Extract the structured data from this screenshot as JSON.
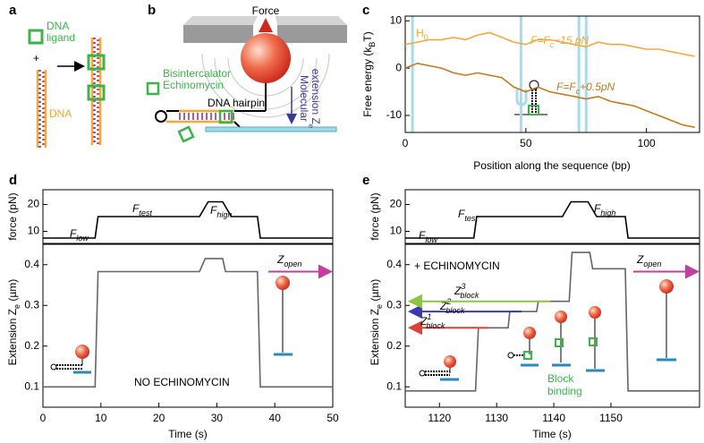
{
  "panel_labels": [
    "a",
    "b",
    "c",
    "d",
    "e"
  ],
  "panel_a": {
    "ligand_label": [
      "DNA",
      "ligand"
    ],
    "plus": "+",
    "dna_label": "DNA"
  },
  "panel_b": {
    "force_label": "Force",
    "drug_label": [
      "Bisintercalator",
      "Echinomycin"
    ],
    "hairpin_label": "DNA hairpin",
    "extension_label": [
      "Molecular",
      "extension Z",
      "e"
    ]
  },
  "chart_data": [
    {
      "type": "line",
      "xlabel": "Position along the sequence (bp)",
      "ylabel": [
        "Free energy (k",
        "B",
        "T)"
      ],
      "xlim": [
        0,
        122
      ],
      "ylim": [
        -13.6,
        11
      ],
      "xticks": [
        0,
        50,
        100
      ],
      "yticks": [
        -10,
        0,
        10
      ],
      "highlight_x": [
        3,
        48,
        72,
        75
      ],
      "highlight_color": "#a8dcea",
      "annotation": [
        "H",
        "0"
      ],
      "series": [
        {
          "name": [
            "F=F",
            "c",
            "−15 pN"
          ],
          "color": "#f6a83a",
          "x": [
            0,
            5,
            10,
            15,
            20,
            25,
            30,
            35,
            40,
            45,
            50,
            55,
            60,
            65,
            70,
            75,
            80,
            85,
            90,
            95,
            100,
            105,
            110,
            115,
            120
          ],
          "values": [
            5,
            5.5,
            6,
            6,
            6.5,
            6,
            7,
            7.5,
            6.5,
            5.5,
            5,
            6,
            6,
            5.5,
            5,
            4.5,
            5.5,
            5,
            5,
            4.5,
            4,
            4,
            3.5,
            3,
            2.5
          ]
        },
        {
          "name": [
            "F=F",
            "c",
            "+0.5pN"
          ],
          "color": "#c47a1e",
          "x": [
            0,
            5,
            10,
            15,
            20,
            25,
            30,
            35,
            40,
            45,
            50,
            55,
            60,
            65,
            70,
            75,
            80,
            85,
            90,
            95,
            100,
            105,
            110,
            115,
            120
          ],
          "values": [
            0,
            1,
            0.5,
            0,
            -1,
            -1.5,
            -1,
            -1.5,
            -2,
            -4,
            -5,
            -4,
            -5,
            -5.5,
            -6,
            -6.5,
            -6,
            -7,
            -7.5,
            -8,
            -9,
            -10,
            -11,
            -12,
            -12.5
          ]
        }
      ]
    },
    {
      "type": "line",
      "ylabel": "force (pN)",
      "xlim": [
        0,
        50
      ],
      "ylim": [
        5.5,
        25.5
      ],
      "yticks": [
        10,
        20
      ],
      "annotations": [
        [
          "F",
          "low"
        ],
        [
          "F",
          "test"
        ],
        [
          "F",
          "high"
        ]
      ],
      "series": [
        {
          "color": "#000000",
          "x": [
            0,
            9,
            9.5,
            27,
            28.5,
            31,
            32.5,
            37,
            37.5,
            50
          ],
          "values": [
            7.5,
            7.5,
            15.5,
            15.5,
            21,
            21,
            15.5,
            15.5,
            7.5,
            7.5
          ]
        }
      ]
    },
    {
      "type": "line",
      "xlabel": "Time (s)",
      "ylabel": [
        "Extension Z",
        "e",
        " (µm)"
      ],
      "xlim": [
        0,
        50
      ],
      "ylim": [
        0.05,
        0.45
      ],
      "xticks": [
        0,
        10,
        20,
        30,
        40,
        50
      ],
      "yticks": [
        0.1,
        0.2,
        0.3,
        0.4
      ],
      "annotation": "NO ECHINOMYCIN",
      "zopen": {
        "label": [
          "Z",
          "open"
        ],
        "value": 0.383,
        "color": "#c040a0"
      },
      "series": [
        {
          "color": "#666666",
          "x": [
            0,
            9,
            9.5,
            27,
            28,
            31,
            31.5,
            37,
            37.5,
            50
          ],
          "values": [
            0.1,
            0.1,
            0.383,
            0.383,
            0.415,
            0.415,
            0.383,
            0.383,
            0.1,
            0.1
          ]
        }
      ]
    },
    {
      "type": "line",
      "ylabel": "force (pN)",
      "xlim": [
        1114,
        1165.5
      ],
      "ylim": [
        5.5,
        25.5
      ],
      "yticks": [
        10,
        20
      ],
      "annotations": [
        [
          "F",
          "low"
        ],
        [
          "F",
          "test"
        ],
        [
          "F",
          "high"
        ]
      ],
      "series": [
        {
          "color": "#000000",
          "x": [
            1114,
            1126,
            1126.5,
            1141.5,
            1143,
            1146,
            1147.5,
            1152.5,
            1153,
            1165.5
          ],
          "values": [
            7.5,
            7.5,
            15.5,
            15.5,
            21,
            21,
            15.5,
            15.5,
            7.5,
            7.5
          ]
        }
      ]
    },
    {
      "type": "line",
      "xlabel": "Time (s)",
      "ylabel": [
        "Extension Z",
        "e",
        " (µm)"
      ],
      "xlim": [
        1114,
        1165.5
      ],
      "ylim": [
        0.05,
        0.45
      ],
      "xticks": [
        1120,
        1130,
        1140,
        1150
      ],
      "yticks": [
        0.1,
        0.2,
        0.3,
        0.4
      ],
      "annotation": "+ ECHINOMYCIN",
      "binding_label": [
        "Block",
        "binding"
      ],
      "zopen": {
        "label": [
          "Z",
          "open"
        ],
        "value": 0.383,
        "color": "#c040a0"
      },
      "block_arrows": [
        {
          "label": [
            "Z",
            "1",
            "block"
          ],
          "value": 0.245,
          "color": "#e0403a"
        },
        {
          "label": [
            "Z",
            "2",
            "block"
          ],
          "value": 0.285,
          "color": "#3a3ab0"
        },
        {
          "label": [
            "Z",
            "3",
            "block"
          ],
          "value": 0.31,
          "color": "#8cc63f"
        }
      ],
      "series": [
        {
          "color": "#666666",
          "x": [
            1114,
            1126.3,
            1126.8,
            1132,
            1132.3,
            1137,
            1137.3,
            1142.7,
            1143.2,
            1146.3,
            1146.8,
            1152.5,
            1153,
            1165.5
          ],
          "values": [
            0.09,
            0.09,
            0.245,
            0.245,
            0.285,
            0.285,
            0.31,
            0.31,
            0.43,
            0.43,
            0.39,
            0.39,
            0.09,
            0.09
          ]
        }
      ]
    }
  ]
}
